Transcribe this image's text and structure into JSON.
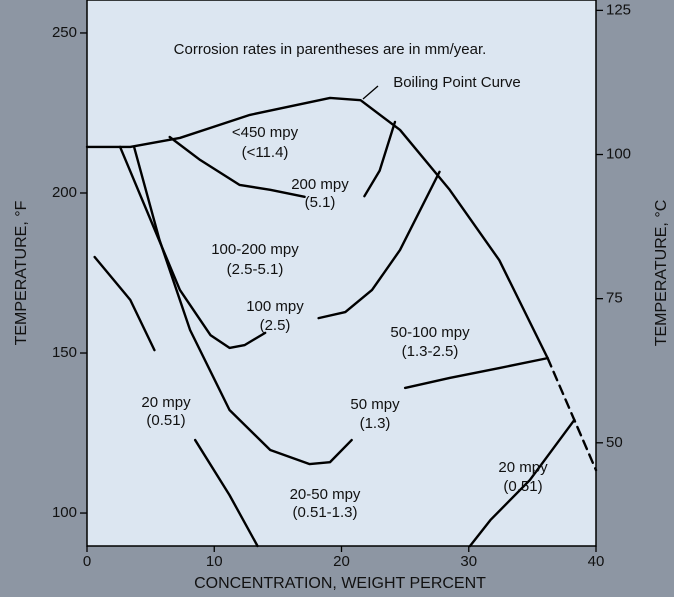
{
  "chart_data": {
    "type": "line",
    "xlabel": "CONCENTRATION, WEIGHT PERCENT",
    "ylabel": "TEMPERATURE, °F",
    "y2label": "TEMPERATURE, °C",
    "xlim": [
      0,
      40
    ],
    "xticks": [
      0,
      10,
      20,
      30,
      40
    ],
    "ylim": [
      89.7,
      260.3
    ],
    "yticks": [
      100,
      150,
      200,
      250
    ],
    "y2lim": [
      32.1,
      126.8
    ],
    "y2ticks": [
      50,
      75,
      100,
      125
    ],
    "color": "#000000",
    "series": [
      {
        "x": [
          0,
          3.4,
          7.3,
          12.8,
          19.1,
          21.5,
          24.6,
          28.5,
          32.4,
          36.2
        ],
        "values": [
          214.4,
          214.4,
          217.2,
          224.4,
          229.7,
          229,
          219.7,
          201,
          179,
          148.4
        ]
      },
      {
        "x": [
          36.2,
          40
        ],
        "values": [
          148.4,
          113.4
        ],
        "style": "dashed"
      },
      {
        "x": [
          6.5,
          8.9,
          12.0,
          14.4,
          17.1
        ],
        "values": [
          217.5,
          210.3,
          202.5,
          201,
          198.8
        ]
      },
      {
        "x": [
          21.8,
          23.0,
          24.2
        ],
        "values": [
          199,
          207,
          222.2
        ]
      },
      {
        "x": [
          2.6,
          5.0,
          7.3,
          9.7,
          11.2,
          12.4,
          14.0
        ],
        "values": [
          214.4,
          191.6,
          169.7,
          155.6,
          151.6,
          152.5,
          156.3
        ]
      },
      {
        "x": [
          18.2,
          20.3,
          22.4,
          24.6,
          27.7
        ],
        "values": [
          160.9,
          162.8,
          169.7,
          182.2,
          206.6
        ]
      },
      {
        "x": [
          3.7,
          5.7,
          8.1,
          11.2,
          14.4,
          17.5,
          19.1,
          20.8
        ],
        "values": [
          214.4,
          185.3,
          157.2,
          132.2,
          119.7,
          115.3,
          115.9,
          122.8
        ]
      },
      {
        "x": [
          25.0,
          28.5,
          32.4,
          36.2
        ],
        "values": [
          139.1,
          142.2,
          145.3,
          148.4
        ]
      },
      {
        "x": [
          0.6,
          3.4,
          5.3
        ],
        "values": [
          180,
          166.6,
          150.9
        ]
      },
      {
        "x": [
          8.5,
          11.2,
          13.4
        ],
        "values": [
          122.8,
          105.6,
          89.7
        ]
      },
      {
        "x": [
          30.1,
          31.7,
          34.8,
          38.3
        ],
        "values": [
          89.7,
          97.8,
          110.3,
          129.1
        ]
      }
    ],
    "annotations": [
      "Corrosion rates in parentheses are in mm/year.",
      "Boiling Point Curve",
      "<450 mpy",
      "(<11.4)",
      "200 mpy",
      "(5.1)",
      "100-200 mpy",
      "(2.5-5.1)",
      "100 mpy",
      "(2.5)",
      "50-100 mpy",
      "(1.3-2.5)",
      "20 mpy",
      "(0.51)",
      "50 mpy",
      "(1.3)",
      "20 mpy",
      "(0.51)",
      "20-50 mpy",
      "(0.51-1.3)"
    ]
  }
}
